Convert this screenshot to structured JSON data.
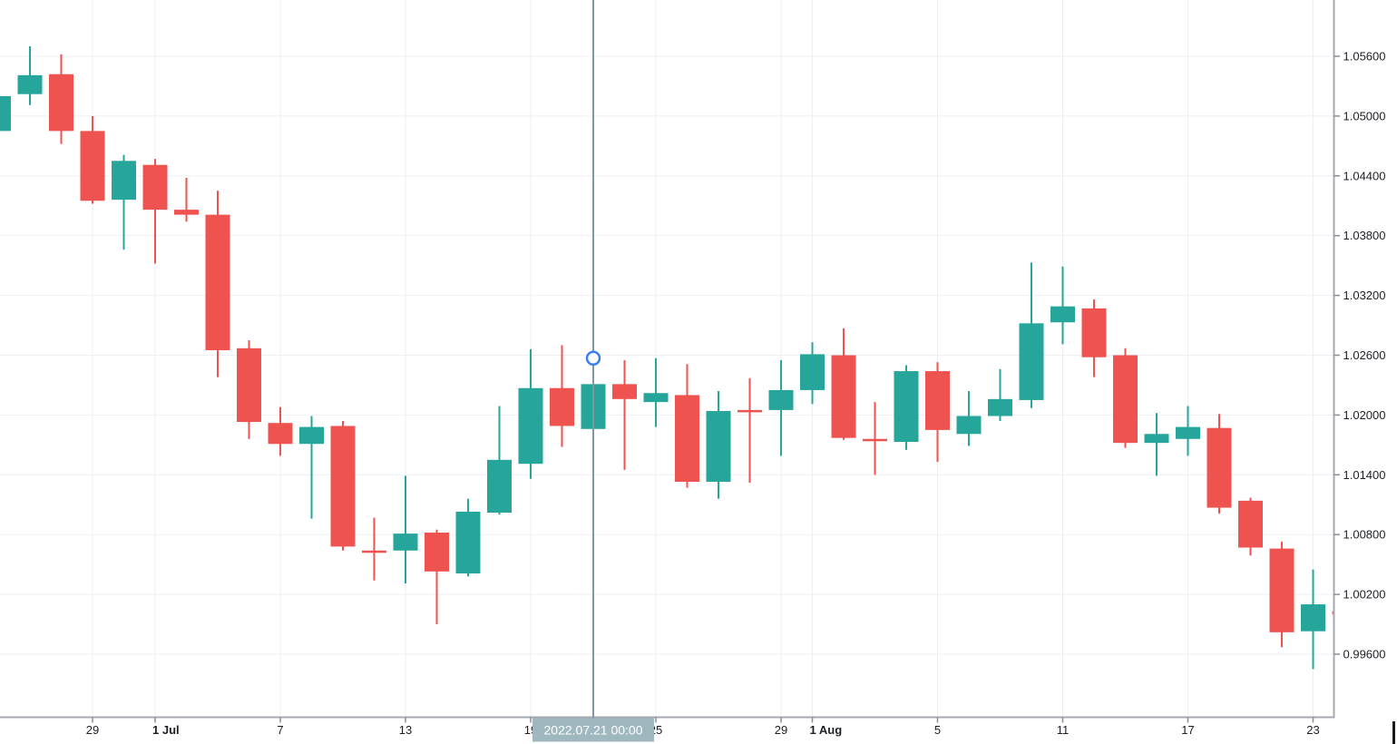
{
  "chart_data": {
    "type": "candlestick",
    "instrument_hint": "",
    "grid": true,
    "legend": "none",
    "ylim": [
      0.9897,
      1.0617
    ],
    "colors": {
      "background": "#ffffff",
      "up": "#26a69a",
      "down": "#ef5350",
      "grid": "#edeff3",
      "axis_line": "#a5a8af",
      "tick": "#8b8e95",
      "label": "#1c1f26",
      "crosshair_line": "#7e99a3",
      "badge_bg": "#9fb8c0",
      "badge_text": "#ffffff",
      "marker_ring": "#3b7df5",
      "marker_fill": "#ffffff",
      "corner_bar": "#15181d"
    },
    "price_axis": {
      "side": "right",
      "ticks": [
        {
          "label": "1.05600",
          "value": 1.056
        },
        {
          "label": "1.05000",
          "value": 1.05
        },
        {
          "label": "1.04400",
          "value": 1.044
        },
        {
          "label": "1.03800",
          "value": 1.038
        },
        {
          "label": "1.03200",
          "value": 1.032
        },
        {
          "label": "1.02600",
          "value": 1.026
        },
        {
          "label": "1.02000",
          "value": 1.02
        },
        {
          "label": "1.01400",
          "value": 1.014
        },
        {
          "label": "1.00800",
          "value": 1.008
        },
        {
          "label": "1.00200",
          "value": 1.002
        },
        {
          "label": "0.99600",
          "value": 0.996
        }
      ]
    },
    "time_axis": {
      "ticks": [
        {
          "label": "29",
          "candle_index": 3,
          "month": false,
          "date": "Jun 29"
        },
        {
          "label": "1 Jul",
          "candle_index": 5,
          "month": true,
          "date": "Jul 1"
        },
        {
          "label": "7",
          "candle_index": 9,
          "month": false,
          "date": "Jul 7"
        },
        {
          "label": "13",
          "candle_index": 13,
          "month": false,
          "date": "Jul 13"
        },
        {
          "label": "19",
          "candle_index": 17,
          "month": false,
          "date": "Jul 19"
        },
        {
          "label": "25",
          "candle_index": 21,
          "month": false,
          "date": "Jul 25"
        },
        {
          "label": "29",
          "candle_index": 25,
          "month": false,
          "date": "Jul 29"
        },
        {
          "label": "1 Aug",
          "candle_index": 26,
          "month": true,
          "date": "Aug 1"
        },
        {
          "label": "5",
          "candle_index": 30,
          "month": false,
          "date": "Aug 5"
        },
        {
          "label": "11",
          "candle_index": 34,
          "month": false,
          "date": "Aug 11"
        },
        {
          "label": "17",
          "candle_index": 38,
          "month": false,
          "date": "Aug 17"
        },
        {
          "label": "23",
          "candle_index": 42,
          "month": false,
          "date": "Aug 23"
        }
      ]
    },
    "crosshair": {
      "candle_index": 19,
      "time_label": "2022.07.21 00:00",
      "marker_price": 1.0257
    },
    "candles": [
      {
        "date": "Jun 24",
        "o": 1.0485,
        "h": 1.052,
        "l": 1.0485,
        "c": 1.052
      },
      {
        "date": "Jun 27",
        "o": 1.0522,
        "h": 1.057,
        "l": 1.0511,
        "c": 1.0541
      },
      {
        "date": "Jun 28",
        "o": 1.0542,
        "h": 1.0562,
        "l": 1.0472,
        "c": 1.0485
      },
      {
        "date": "Jun 29",
        "o": 1.0485,
        "h": 1.05,
        "l": 1.0412,
        "c": 1.0415
      },
      {
        "date": "Jun 30",
        "o": 1.0416,
        "h": 1.0461,
        "l": 1.0366,
        "c": 1.0455
      },
      {
        "date": "Jul 1",
        "o": 1.0451,
        "h": 1.0457,
        "l": 1.0352,
        "c": 1.0406
      },
      {
        "date": "Jul 4",
        "o": 1.0406,
        "h": 1.0438,
        "l": 1.0394,
        "c": 1.0401
      },
      {
        "date": "Jul 5",
        "o": 1.0401,
        "h": 1.0425,
        "l": 1.0238,
        "c": 1.0265
      },
      {
        "date": "Jul 6",
        "o": 1.0267,
        "h": 1.0275,
        "l": 1.0176,
        "c": 1.0193
      },
      {
        "date": "Jul 7",
        "o": 1.0192,
        "h": 1.0208,
        "l": 1.0159,
        "c": 1.0171
      },
      {
        "date": "Jul 8",
        "o": 1.0171,
        "h": 1.0199,
        "l": 1.0096,
        "c": 1.0188
      },
      {
        "date": "Jul 11",
        "o": 1.0189,
        "h": 1.0194,
        "l": 1.0064,
        "c": 1.0068
      },
      {
        "date": "Jul 12",
        "o": 1.0064,
        "h": 1.0097,
        "l": 1.0034,
        "c": 1.0062
      },
      {
        "date": "Jul 13",
        "o": 1.0064,
        "h": 1.0139,
        "l": 1.0031,
        "c": 1.0081
      },
      {
        "date": "Jul 14",
        "o": 1.0082,
        "h": 1.0085,
        "l": 0.999,
        "c": 1.0043
      },
      {
        "date": "Jul 15",
        "o": 1.0041,
        "h": 1.0116,
        "l": 1.0038,
        "c": 1.0103
      },
      {
        "date": "Jul 18",
        "o": 1.0102,
        "h": 1.0209,
        "l": 1.01,
        "c": 1.0155
      },
      {
        "date": "Jul 19",
        "o": 1.0151,
        "h": 1.0266,
        "l": 1.0136,
        "c": 1.0227
      },
      {
        "date": "Jul 20",
        "o": 1.0227,
        "h": 1.027,
        "l": 1.0168,
        "c": 1.0189
      },
      {
        "date": "Jul 21",
        "o": 1.0186,
        "h": 1.0231,
        "l": 1.0186,
        "c": 1.0231
      },
      {
        "date": "Jul 22",
        "o": 1.0231,
        "h": 1.0255,
        "l": 1.0145,
        "c": 1.0216
      },
      {
        "date": "Jul 25",
        "o": 1.0213,
        "h": 1.0257,
        "l": 1.0188,
        "c": 1.0222
      },
      {
        "date": "Jul 26",
        "o": 1.022,
        "h": 1.0251,
        "l": 1.0127,
        "c": 1.0133
      },
      {
        "date": "Jul 27",
        "o": 1.0133,
        "h": 1.0224,
        "l": 1.0116,
        "c": 1.0204
      },
      {
        "date": "Jul 28",
        "o": 1.0205,
        "h": 1.0237,
        "l": 1.0132,
        "c": 1.0203
      },
      {
        "date": "Jul 29",
        "o": 1.0205,
        "h": 1.0255,
        "l": 1.0159,
        "c": 1.0225
      },
      {
        "date": "Aug 1",
        "o": 1.0225,
        "h": 1.0273,
        "l": 1.0211,
        "c": 1.0261
      },
      {
        "date": "Aug 2",
        "o": 1.026,
        "h": 1.0287,
        "l": 1.0175,
        "c": 1.0177
      },
      {
        "date": "Aug 3",
        "o": 1.0176,
        "h": 1.0213,
        "l": 1.014,
        "c": 1.0174
      },
      {
        "date": "Aug 4",
        "o": 1.0173,
        "h": 1.025,
        "l": 1.0165,
        "c": 1.0244
      },
      {
        "date": "Aug 5",
        "o": 1.0244,
        "h": 1.0253,
        "l": 1.0153,
        "c": 1.0185
      },
      {
        "date": "Aug 8",
        "o": 1.0181,
        "h": 1.0224,
        "l": 1.0169,
        "c": 1.0199
      },
      {
        "date": "Aug 9",
        "o": 1.0199,
        "h": 1.0246,
        "l": 1.0194,
        "c": 1.0216
      },
      {
        "date": "Aug 10",
        "o": 1.0215,
        "h": 1.0353,
        "l": 1.0207,
        "c": 1.0292
      },
      {
        "date": "Aug 11",
        "o": 1.0293,
        "h": 1.0349,
        "l": 1.0271,
        "c": 1.0309
      },
      {
        "date": "Aug 12",
        "o": 1.0307,
        "h": 1.0316,
        "l": 1.0238,
        "c": 1.0258
      },
      {
        "date": "Aug 15",
        "o": 1.026,
        "h": 1.0267,
        "l": 1.0167,
        "c": 1.0172
      },
      {
        "date": "Aug 16",
        "o": 1.0172,
        "h": 1.0202,
        "l": 1.0139,
        "c": 1.0181
      },
      {
        "date": "Aug 17",
        "o": 1.0176,
        "h": 1.0209,
        "l": 1.0159,
        "c": 1.0188
      },
      {
        "date": "Aug 18",
        "o": 1.0187,
        "h": 1.0201,
        "l": 1.0101,
        "c": 1.0107
      },
      {
        "date": "Aug 19",
        "o": 1.0114,
        "h": 1.0117,
        "l": 1.0059,
        "c": 1.0067
      },
      {
        "date": "Aug 22",
        "o": 1.0066,
        "h": 1.0073,
        "l": 0.9967,
        "c": 0.9982
      },
      {
        "date": "Aug 23",
        "o": 0.9983,
        "h": 1.0045,
        "l": 0.9945,
        "c": 1.001
      },
      {
        "date": "Aug 24",
        "o": 1.0003,
        "h": 1.0003,
        "l": 1.0,
        "c": 1.0
      }
    ]
  }
}
